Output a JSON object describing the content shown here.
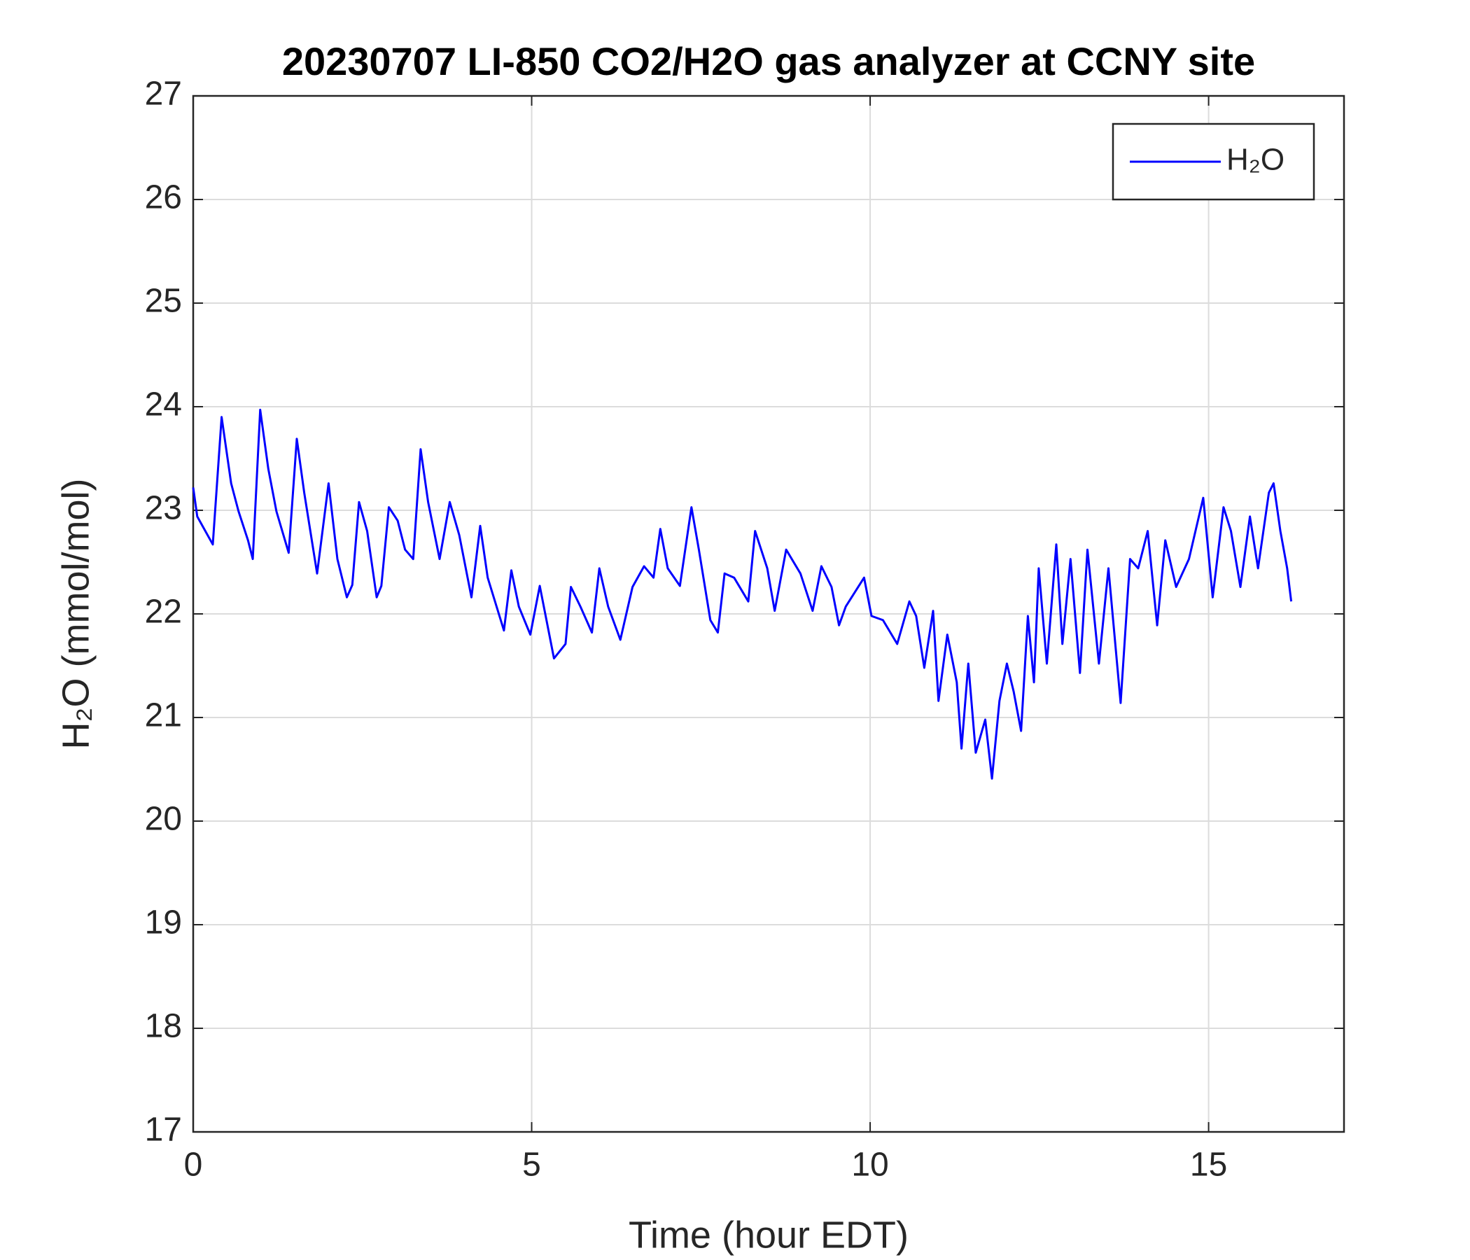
{
  "chart_data": {
    "type": "line",
    "title": "20230707 LI-850 CO2/H2O gas analyzer at CCNY site",
    "x_label": "Time (hour EDT)",
    "y_label": "H₂O (mmol/mol)",
    "xlim": [
      0,
      17
    ],
    "xticks": [
      0,
      5,
      10,
      15
    ],
    "ylim": [
      17,
      27
    ],
    "yticks": [
      17,
      18,
      19,
      20,
      21,
      22,
      23,
      24,
      25,
      26,
      27
    ],
    "grid": true,
    "legend": "upper right",
    "x": [
      0,
      0.06,
      0.29,
      0.42,
      0.56,
      0.67,
      0.81,
      0.88,
      0.99,
      1.11,
      1.23,
      1.41,
      1.53,
      1.64,
      1.83,
      2.0,
      2.13,
      2.27,
      2.35,
      2.45,
      2.57,
      2.71,
      2.78,
      2.89,
      3.02,
      3.13,
      3.25,
      3.36,
      3.47,
      3.64,
      3.79,
      3.93,
      4.11,
      4.24,
      4.35,
      4.59,
      4.7,
      4.81,
      4.98,
      5.12,
      5.33,
      5.5,
      5.58,
      5.72,
      5.89,
      6.0,
      6.13,
      6.31,
      6.49,
      6.66,
      6.8,
      6.9,
      7.01,
      7.19,
      7.36,
      7.47,
      7.64,
      7.75,
      7.85,
      7.99,
      8.2,
      8.3,
      8.48,
      8.59,
      8.76,
      8.97,
      9.15,
      9.28,
      9.43,
      9.54,
      9.64,
      9.91,
      10.02,
      10.19,
      10.4,
      10.58,
      10.68,
      10.8,
      10.93,
      11.01,
      11.14,
      11.28,
      11.35,
      11.45,
      11.56,
      11.7,
      11.8,
      11.91,
      12.02,
      12.12,
      12.23,
      12.33,
      12.42,
      12.49,
      12.61,
      12.75,
      12.84,
      12.96,
      13.1,
      13.21,
      13.38,
      13.52,
      13.7,
      13.84,
      13.96,
      14.1,
      14.24,
      14.36,
      14.52,
      14.71,
      14.92,
      15.06,
      15.22,
      15.33,
      15.47,
      15.61,
      15.73,
      15.89,
      15.96,
      16.06,
      16.16,
      16.22
    ],
    "series": [
      {
        "name": "H₂O",
        "color": "#0000ff",
        "values": [
          23.22,
          22.94,
          22.67,
          23.9,
          23.26,
          22.99,
          22.71,
          22.53,
          23.97,
          23.4,
          22.99,
          22.59,
          23.69,
          23.17,
          22.39,
          23.26,
          22.53,
          22.16,
          22.28,
          23.08,
          22.8,
          22.16,
          22.27,
          23.03,
          22.9,
          22.62,
          22.53,
          23.59,
          23.08,
          22.53,
          23.08,
          22.76,
          22.16,
          22.85,
          22.35,
          21.84,
          22.42,
          22.07,
          21.8,
          22.27,
          21.57,
          21.71,
          22.26,
          22.07,
          21.82,
          22.44,
          22.07,
          21.75,
          22.26,
          22.46,
          22.35,
          22.82,
          22.44,
          22.27,
          23.03,
          22.62,
          21.94,
          21.82,
          22.39,
          22.35,
          22.12,
          22.8,
          22.44,
          22.03,
          22.62,
          22.39,
          22.03,
          22.46,
          22.26,
          21.89,
          22.07,
          22.35,
          21.98,
          21.94,
          21.71,
          22.12,
          21.98,
          21.48,
          22.03,
          21.16,
          21.8,
          21.34,
          20.7,
          21.52,
          20.66,
          20.98,
          20.41,
          21.16,
          21.52,
          21.25,
          20.87,
          21.98,
          21.34,
          22.44,
          21.52,
          22.67,
          21.71,
          22.53,
          21.43,
          22.62,
          21.52,
          22.44,
          21.14,
          22.53,
          22.44,
          22.8,
          21.89,
          22.71,
          22.26,
          22.53,
          23.12,
          22.16,
          23.03,
          22.8,
          22.26,
          22.94,
          22.44,
          23.17,
          23.26,
          22.8,
          22.44,
          22.12
        ]
      }
    ]
  }
}
